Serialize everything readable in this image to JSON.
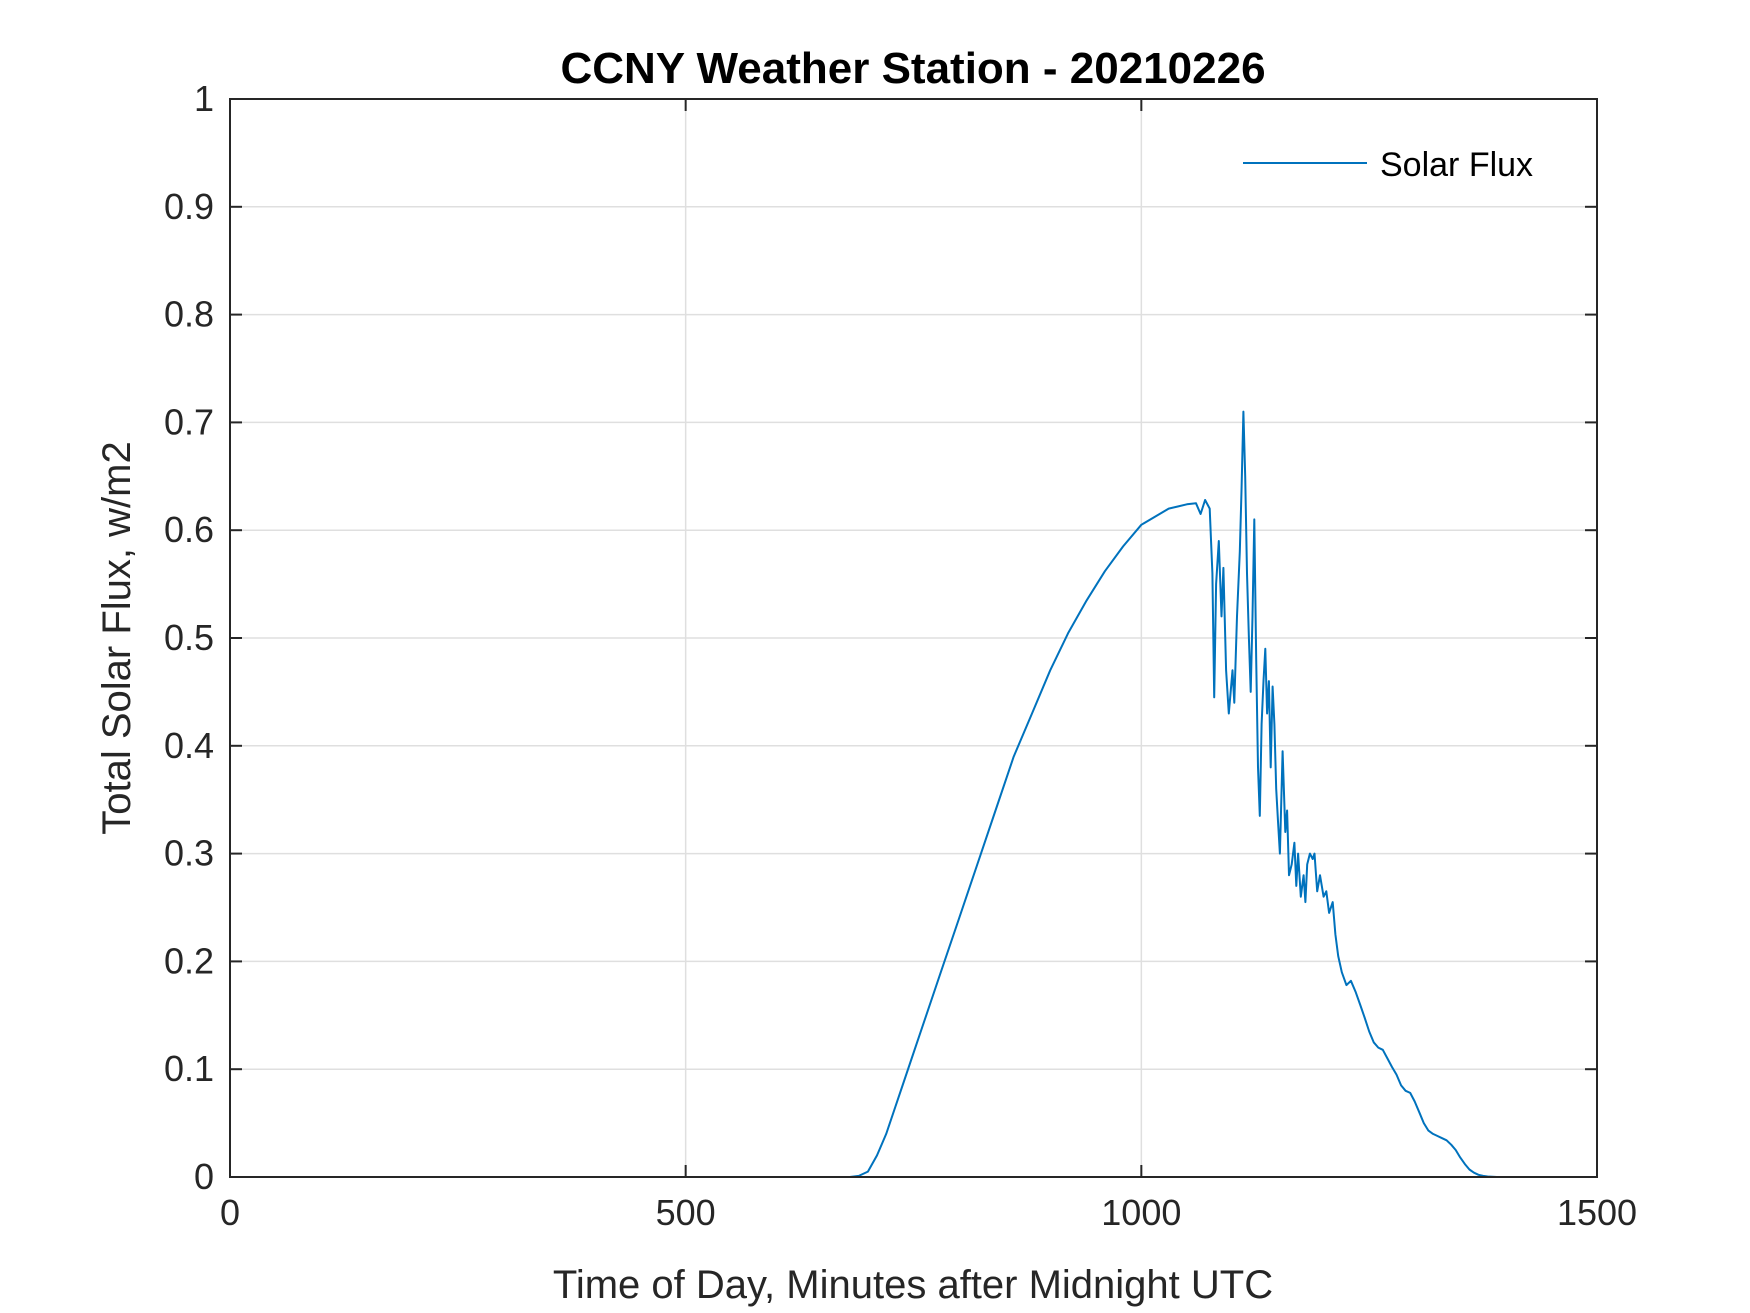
{
  "chart_data": {
    "type": "line",
    "title": "CCNY Weather Station - 20210226",
    "xlabel": "Time of Day, Minutes after Midnight UTC",
    "ylabel": "Total Solar Flux, w/m2",
    "xlim": [
      0,
      1500
    ],
    "ylim": [
      0,
      1
    ],
    "xticks": [
      0,
      500,
      1000,
      1500
    ],
    "xtick_labels": [
      "0",
      "500",
      "1000",
      "1500"
    ],
    "yticks": [
      0,
      0.1,
      0.2,
      0.3,
      0.4,
      0.5,
      0.6,
      0.7,
      0.8,
      0.9,
      1
    ],
    "ytick_labels": [
      "0",
      "0.1",
      "0.2",
      "0.3",
      "0.4",
      "0.5",
      "0.6",
      "0.7",
      "0.8",
      "0.9",
      "1"
    ],
    "grid": true,
    "legend_location": "top-right",
    "series": [
      {
        "name": "Solar Flux",
        "color": "#0072BD",
        "x": [
          0,
          100,
          200,
          300,
          400,
          500,
          600,
          680,
          690,
          700,
          710,
          720,
          730,
          740,
          750,
          760,
          780,
          800,
          820,
          840,
          860,
          880,
          900,
          920,
          940,
          960,
          980,
          1000,
          1020,
          1030,
          1040,
          1050,
          1060,
          1065,
          1070,
          1075,
          1078,
          1080,
          1082,
          1085,
          1088,
          1090,
          1093,
          1096,
          1100,
          1102,
          1105,
          1108,
          1110,
          1112,
          1114,
          1116,
          1118,
          1120,
          1122,
          1124,
          1126,
          1128,
          1130,
          1132,
          1134,
          1136,
          1138,
          1140,
          1142,
          1144,
          1146,
          1148,
          1150,
          1152,
          1155,
          1158,
          1160,
          1162,
          1165,
          1168,
          1170,
          1172,
          1175,
          1178,
          1180,
          1182,
          1185,
          1188,
          1190,
          1193,
          1196,
          1200,
          1203,
          1206,
          1210,
          1213,
          1216,
          1220,
          1225,
          1230,
          1235,
          1240,
          1245,
          1250,
          1255,
          1260,
          1265,
          1270,
          1275,
          1280,
          1285,
          1290,
          1295,
          1300,
          1305,
          1310,
          1315,
          1320,
          1325,
          1330,
          1335,
          1340,
          1345,
          1350,
          1355,
          1360,
          1365,
          1370,
          1375,
          1380,
          1390,
          1400,
          1420,
          1440,
          1450
        ],
        "y": [
          0,
          0,
          0,
          0,
          0,
          0,
          0,
          0,
          0.001,
          0.005,
          0.02,
          0.04,
          0.065,
          0.09,
          0.115,
          0.14,
          0.19,
          0.24,
          0.29,
          0.34,
          0.39,
          0.43,
          0.47,
          0.505,
          0.535,
          0.562,
          0.585,
          0.605,
          0.615,
          0.62,
          0.622,
          0.624,
          0.625,
          0.615,
          0.628,
          0.62,
          0.56,
          0.445,
          0.55,
          0.59,
          0.52,
          0.565,
          0.47,
          0.43,
          0.47,
          0.44,
          0.52,
          0.58,
          0.64,
          0.71,
          0.65,
          0.56,
          0.5,
          0.45,
          0.52,
          0.61,
          0.48,
          0.38,
          0.335,
          0.42,
          0.46,
          0.49,
          0.43,
          0.46,
          0.38,
          0.455,
          0.42,
          0.36,
          0.33,
          0.3,
          0.395,
          0.32,
          0.34,
          0.28,
          0.29,
          0.31,
          0.27,
          0.3,
          0.26,
          0.28,
          0.255,
          0.29,
          0.3,
          0.295,
          0.3,
          0.265,
          0.28,
          0.26,
          0.265,
          0.245,
          0.255,
          0.225,
          0.205,
          0.19,
          0.178,
          0.182,
          0.172,
          0.16,
          0.148,
          0.135,
          0.125,
          0.12,
          0.118,
          0.11,
          0.102,
          0.095,
          0.085,
          0.08,
          0.078,
          0.07,
          0.06,
          0.05,
          0.043,
          0.04,
          0.038,
          0.036,
          0.034,
          0.03,
          0.025,
          0.018,
          0.012,
          0.007,
          0.004,
          0.002,
          0.001,
          0.0005,
          0,
          0,
          0,
          0,
          0
        ]
      }
    ]
  }
}
